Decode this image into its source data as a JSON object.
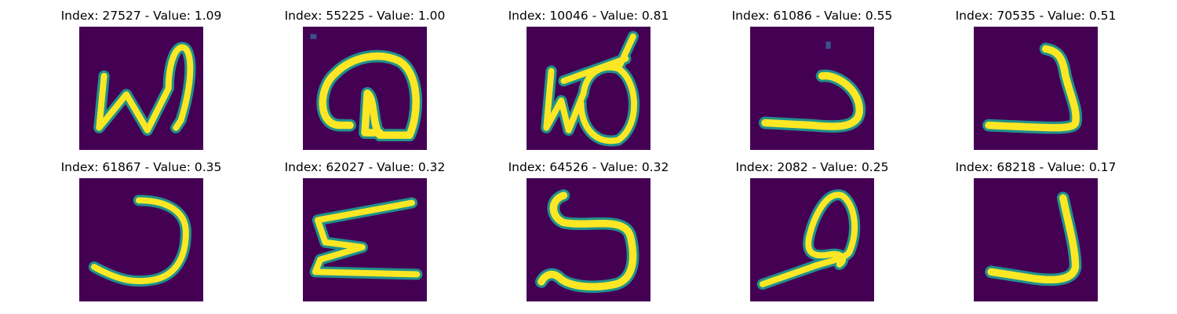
{
  "figure": {
    "background": "#ffffff",
    "colormap": {
      "name": "viridis",
      "background_color": "#440154",
      "stroke_color": "#fde725",
      "edge_colors": [
        "#21918c",
        "#35b779",
        "#90d743"
      ]
    },
    "panels": [
      {
        "title": "Index: 27527 - Value: 1.09",
        "glyph": "w-with-hook-icon"
      },
      {
        "title": "Index: 55225 - Value: 1.00",
        "glyph": "looped-curl-icon"
      },
      {
        "title": "Index: 10046 - Value: 0.81",
        "glyph": "w-loop-slash-icon"
      },
      {
        "title": "Index: 61086 - Value: 0.55",
        "glyph": "dot-hook-icon"
      },
      {
        "title": "Index: 70535 - Value: 0.51",
        "glyph": "reverse-j-icon"
      },
      {
        "title": "Index: 61867 - Value: 0.35",
        "glyph": "open-curve-icon"
      },
      {
        "title": "Index: 62027 - Value: 0.32",
        "glyph": "zigzag-icon"
      },
      {
        "title": "Index: 64526 - Value: 0.32",
        "glyph": "s-loop-icon"
      },
      {
        "title": "Index: 2082 - Value: 0.25",
        "glyph": "leaf-loop-icon"
      },
      {
        "title": "Index: 68218 - Value: 0.17",
        "glyph": "tall-j-icon"
      }
    ]
  }
}
